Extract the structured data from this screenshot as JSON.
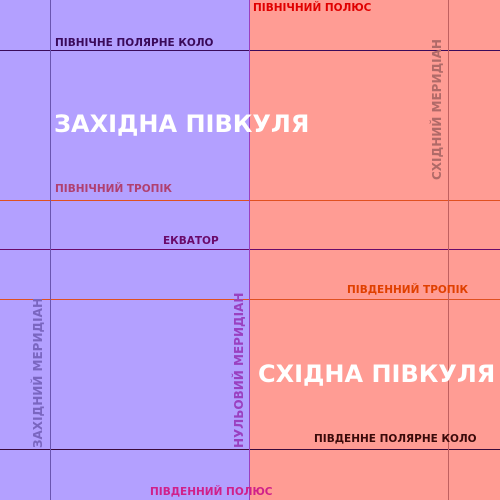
{
  "hemispheres": {
    "western": {
      "label": "ЗАХІДНА ПІВКУЛЯ",
      "color": "#b3a0ff"
    },
    "eastern": {
      "label": "СХІДНА ПІВКУЛЯ",
      "color": "#ff9c94"
    }
  },
  "lines": {
    "north_pole": {
      "label": "ПІВНІЧНИЙ ПОЛЮС",
      "color": "#e00000"
    },
    "arctic_circle": {
      "label": "ПІВНІЧНЕ ПОЛЯРНЕ КОЛО",
      "color": "#3a0a5a"
    },
    "tropic_of_cancer": {
      "label": "ПІВНІЧНИЙ ТРОПІК",
      "color": "#b04070"
    },
    "equator": {
      "label": "ЕКВАТОР",
      "color": "#6a0a6a"
    },
    "tropic_of_capricorn": {
      "label": "ПІВДЕННИЙ ТРОПІК",
      "color": "#e04000"
    },
    "antarctic_circle": {
      "label": "ПІВДЕННЕ ПОЛЯРНЕ КОЛО",
      "color": "#3a0a0a"
    },
    "south_pole": {
      "label": "ПІВДЕННИЙ ПОЛЮС",
      "color": "#d0208a"
    },
    "prime_meridian": {
      "label": "НУЛЬОВИЙ МЕРИДІАН",
      "color": "#9a40c0"
    },
    "western_meridian": {
      "label": "ЗАХІДНИЙ МЕРИДІАН",
      "color": "#7a66c0"
    },
    "eastern_meridian": {
      "label": "СХІДНИЙ МЕРИДІАН",
      "color": "#b06a68"
    }
  }
}
